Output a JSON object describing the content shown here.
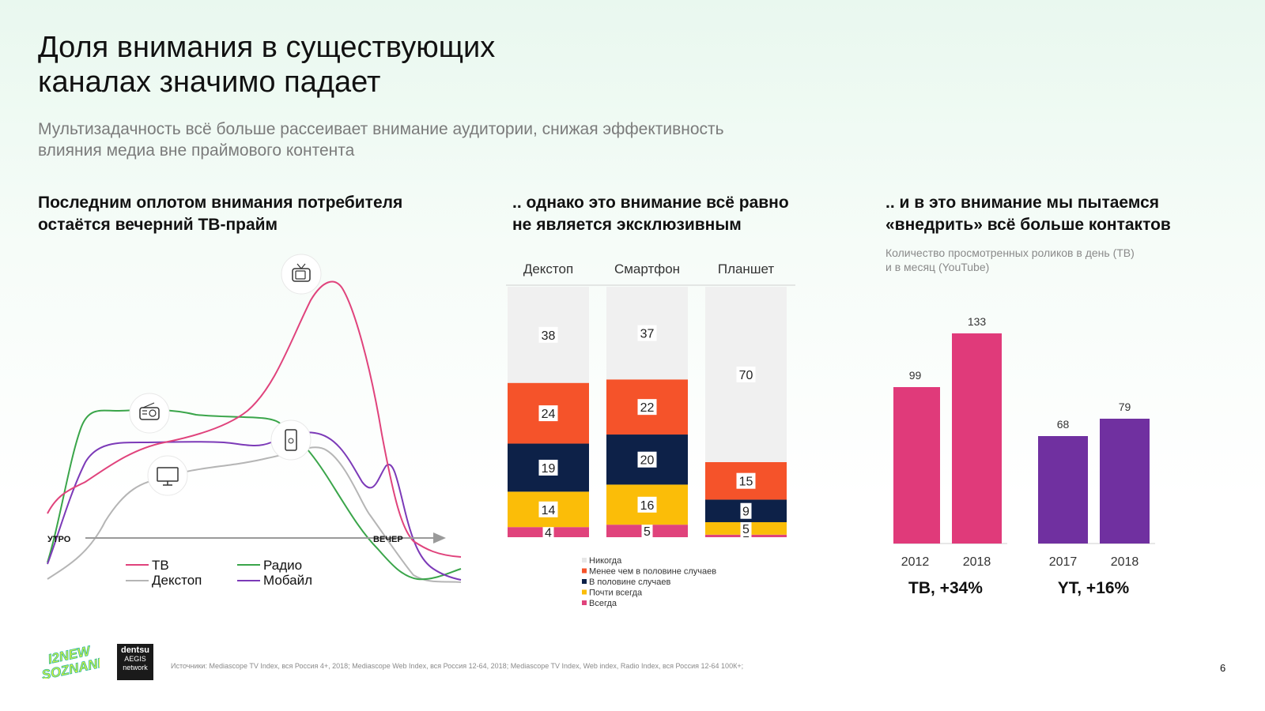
{
  "title": [
    "Доля внимания в существующих",
    "каналах значимо падает"
  ],
  "subtitle": [
    "Мультизадачность всё больше рассеивает внимание аудитории, снижая эффективность",
    "влияния медиа вне праймового контента"
  ],
  "sections": [
    [
      "Последним оплотом внимания потребителя",
      "остаётся вечерний ТВ-прайм"
    ],
    [
      ".. однако это внимание всё равно",
      "не является эксклюзивным"
    ],
    [
      ".. и в это внимание мы пытаемся",
      "«внедрить» всё больше контактов"
    ]
  ],
  "note": [
    "Количество просмотренных роликов в день (ТВ)",
    "и в месяц (YouTube)"
  ],
  "chart_data": [
    {
      "type": "line",
      "x_labels": {
        "start": "УТРО",
        "end": "ВЕЧЕР"
      },
      "series": [
        {
          "name": "ТВ",
          "color": "#e0437c"
        },
        {
          "name": "Радио",
          "color": "#3aa54a"
        },
        {
          "name": "Декстоп",
          "color": "#b5b5b5"
        },
        {
          "name": "Мобайл",
          "color": "#7c3ab8"
        }
      ],
      "icons": [
        "tv-icon",
        "radio-icon",
        "desktop-icon",
        "smartphone-icon"
      ]
    },
    {
      "type": "bar",
      "stacked": true,
      "categories": [
        "Декстоп",
        "Смартфон",
        "Планшет"
      ],
      "series": [
        {
          "name": "Всегда",
          "color": "#e0437c",
          "values": [
            4,
            5,
            1
          ]
        },
        {
          "name": "Почти всегда",
          "color": "#fbbd08",
          "values": [
            14,
            16,
            5
          ]
        },
        {
          "name": "В половине случаев",
          "color": "#0d2148",
          "values": [
            19,
            20,
            9
          ]
        },
        {
          "name": "Менее чем в половине случаев",
          "color": "#f5532a",
          "values": [
            24,
            22,
            15
          ]
        },
        {
          "name": "Никогда",
          "color": "#f0f0f0",
          "values": [
            38,
            37,
            70
          ]
        }
      ],
      "legend_order": [
        "Никогда",
        "Менее чем в половине случаев",
        "В половине случаев",
        "Почти всегда",
        "Всегда"
      ]
    },
    {
      "type": "bar",
      "groups": [
        {
          "label": "ТВ, +34%",
          "color": "#e03a7a",
          "categories": [
            "2012",
            "2018"
          ],
          "values": [
            99,
            133
          ]
        },
        {
          "label": "YT, +16%",
          "color": "#7030a0",
          "categories": [
            "2017",
            "2018"
          ],
          "values": [
            68,
            79
          ]
        }
      ]
    }
  ],
  "footer": {
    "sources": "Источники: Mediascope TV Index, вся Россия 4+, 2018; Mediascope Web Index, вся Россия 12-64, 2018; Mediascope TV Index, Web index, Radio Index, вся Россия 12-64 100К+;",
    "page": "6",
    "logo_text": [
      "I2NEW",
      "SOZNANIE"
    ],
    "partner_logo": [
      "dentsu",
      "AEGIS",
      "network"
    ]
  }
}
